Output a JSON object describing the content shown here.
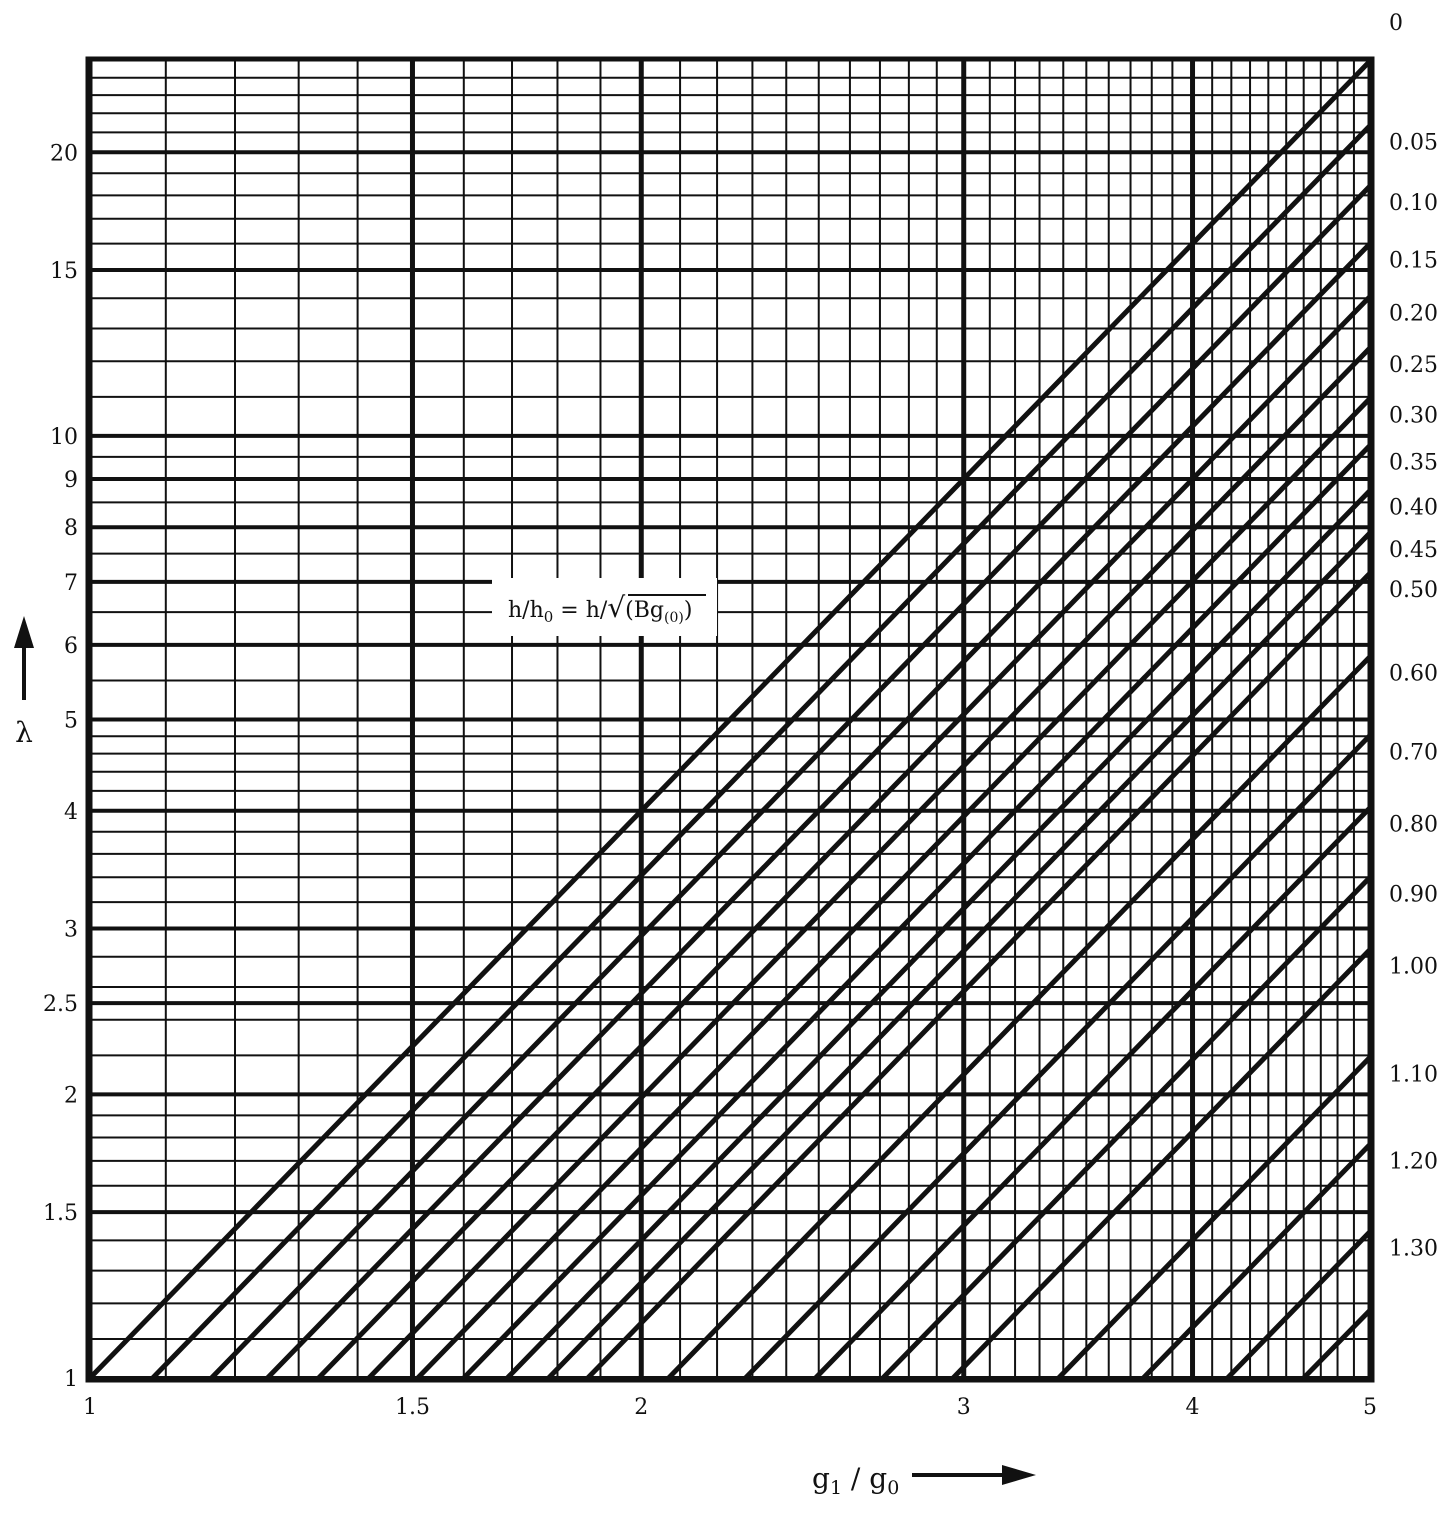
{
  "chart_data": {
    "type": "line",
    "x_scale": "log",
    "y_scale": "log",
    "xlim": [
      1,
      5
    ],
    "ylim": [
      1,
      25
    ],
    "grid": true,
    "x_ticks": [
      {
        "value": 1,
        "label": "1"
      },
      {
        "value": 1.5,
        "label": "1.5"
      },
      {
        "value": 2,
        "label": "2"
      },
      {
        "value": 3,
        "label": "3"
      },
      {
        "value": 4,
        "label": "4"
      },
      {
        "value": 5,
        "label": "5"
      }
    ],
    "y_ticks": [
      {
        "value": 1,
        "label": "1"
      },
      {
        "value": 1.5,
        "label": "1.5"
      },
      {
        "value": 2,
        "label": "2"
      },
      {
        "value": 2.5,
        "label": "2.5"
      },
      {
        "value": 3,
        "label": "3"
      },
      {
        "value": 4,
        "label": "4"
      },
      {
        "value": 5,
        "label": "5"
      },
      {
        "value": 6,
        "label": "6"
      },
      {
        "value": 7,
        "label": "7"
      },
      {
        "value": 8,
        "label": "8"
      },
      {
        "value": 9,
        "label": "9"
      },
      {
        "value": 10,
        "label": "10"
      },
      {
        "value": 15,
        "label": "15"
      },
      {
        "value": 20,
        "label": "20"
      }
    ],
    "xlabel": {
      "main": "g",
      "sub1": "1",
      "slash": " / ",
      "main2": "g",
      "sub2": "0"
    },
    "ylabel": "λ",
    "curve_label": {
      "lhs": "h/h",
      "lhs_sub": "0",
      "eq": " = h/",
      "root": "√",
      "rad": "(Bg",
      "rad_sub": "(0)",
      "close": ")"
    },
    "series": [
      {
        "name": "0",
        "x": [
          1,
          5
        ],
        "y": [
          1,
          25
        ]
      },
      {
        "name": "0.05",
        "x": [
          1.082,
          5
        ],
        "y": [
          1,
          21.35
        ]
      },
      {
        "name": "0.10",
        "x": [
          1.165,
          5
        ],
        "y": [
          1,
          18.42
        ]
      },
      {
        "name": "0.15",
        "x": [
          1.25,
          5
        ],
        "y": [
          1,
          16.0
        ]
      },
      {
        "name": "0.20",
        "x": [
          1.333,
          5
        ],
        "y": [
          1,
          14.06
        ]
      },
      {
        "name": "0.25",
        "x": [
          1.42,
          5
        ],
        "y": [
          1,
          12.4
        ]
      },
      {
        "name": "0.30",
        "x": [
          1.51,
          5
        ],
        "y": [
          1,
          10.96
        ]
      },
      {
        "name": "0.35",
        "x": [
          1.6,
          5
        ],
        "y": [
          1,
          9.77
        ]
      },
      {
        "name": "0.40",
        "x": [
          1.69,
          5
        ],
        "y": [
          1,
          8.75
        ]
      },
      {
        "name": "0.45",
        "x": [
          1.78,
          5
        ],
        "y": [
          1,
          7.89
        ]
      },
      {
        "name": "0.50",
        "x": [
          1.87,
          5
        ],
        "y": [
          1,
          7.15
        ]
      },
      {
        "name": "0.60",
        "x": [
          2.07,
          5
        ],
        "y": [
          1,
          5.83
        ]
      },
      {
        "name": "0.70",
        "x": [
          2.28,
          5
        ],
        "y": [
          1,
          4.81
        ]
      },
      {
        "name": "0.80",
        "x": [
          2.49,
          5
        ],
        "y": [
          1,
          4.03
        ]
      },
      {
        "name": "0.90",
        "x": [
          2.71,
          5
        ],
        "y": [
          1,
          3.4
        ]
      },
      {
        "name": "1.00",
        "x": [
          2.96,
          5
        ],
        "y": [
          1,
          2.85
        ]
      },
      {
        "name": "1.10",
        "x": [
          3.38,
          5
        ],
        "y": [
          1,
          2.19
        ]
      },
      {
        "name": "1.20",
        "x": [
          3.76,
          5
        ],
        "y": [
          1,
          1.77
        ]
      },
      {
        "name": "1.30",
        "x": [
          4.18,
          5
        ],
        "y": [
          1,
          1.43
        ]
      },
      {
        "name": "",
        "x": [
          4.6,
          5
        ],
        "y": [
          1,
          1.18
        ]
      }
    ]
  }
}
